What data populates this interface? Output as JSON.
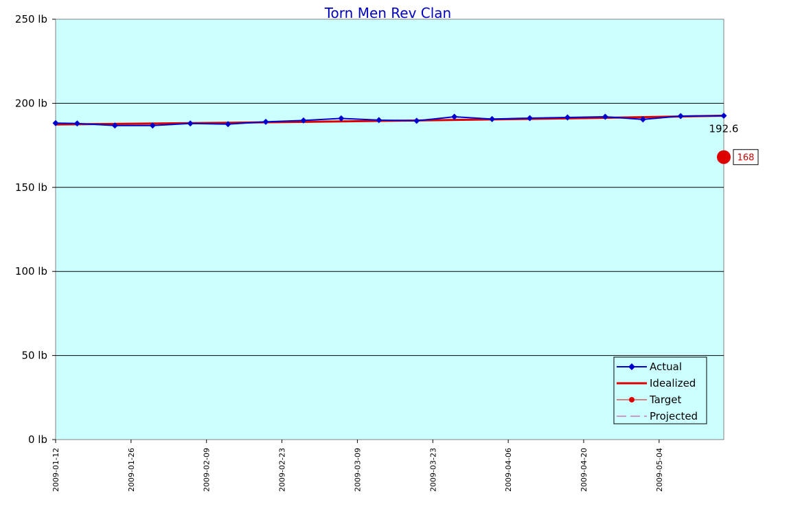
{
  "chart_data": {
    "type": "line",
    "title": "Torn Men Rev Clan",
    "xlabel": "",
    "ylabel": "",
    "ylim": [
      0,
      250
    ],
    "y_ticks": [
      "0 lb",
      "50 lb",
      "100 lb",
      "150 lb",
      "200 lb",
      "250 lb"
    ],
    "xlim": [
      "2009-01-12",
      "2009-05-16"
    ],
    "x_ticks": [
      "2009-01-12",
      "2009-01-26",
      "2009-02-09",
      "2009-02-23",
      "2009-03-09",
      "2009-03-23",
      "2009-04-06",
      "2009-04-20",
      "2009-05-04"
    ],
    "grid": true,
    "plot_background": "#ccffff",
    "legend_position": "bottom-right",
    "series": [
      {
        "name": "Actual",
        "color": "#0000cc",
        "marker": "diamond",
        "x": [
          "2009-01-12",
          "2009-01-16",
          "2009-01-23",
          "2009-01-30",
          "2009-02-06",
          "2009-02-13",
          "2009-02-20",
          "2009-02-27",
          "2009-03-06",
          "2009-03-13",
          "2009-03-20",
          "2009-03-27",
          "2009-04-03",
          "2009-04-10",
          "2009-04-17",
          "2009-04-24",
          "2009-05-01",
          "2009-05-08",
          "2009-05-16"
        ],
        "values": [
          188.2,
          188.0,
          186.8,
          186.8,
          188.0,
          187.6,
          189.0,
          189.8,
          191.0,
          190.0,
          189.6,
          192.0,
          190.6,
          191.2,
          191.6,
          192.0,
          190.4,
          192.4,
          192.6
        ]
      },
      {
        "name": "Idealized",
        "color": "#dd0000",
        "marker": "none",
        "x": [
          "2009-01-12",
          "2009-02-13",
          "2009-03-20",
          "2009-04-17",
          "2009-05-16"
        ],
        "values": [
          187.4,
          188.4,
          189.8,
          191.0,
          192.6
        ]
      },
      {
        "name": "Target",
        "color": "#dd0000",
        "marker": "circle",
        "x": [
          "2009-05-16"
        ],
        "values": [
          168
        ]
      },
      {
        "name": "Projected",
        "color": "#cc3399",
        "marker": "none",
        "dashed": true,
        "x": [],
        "values": []
      }
    ],
    "annotations": {
      "last_actual_label": "192.6",
      "target_label": "168"
    }
  }
}
